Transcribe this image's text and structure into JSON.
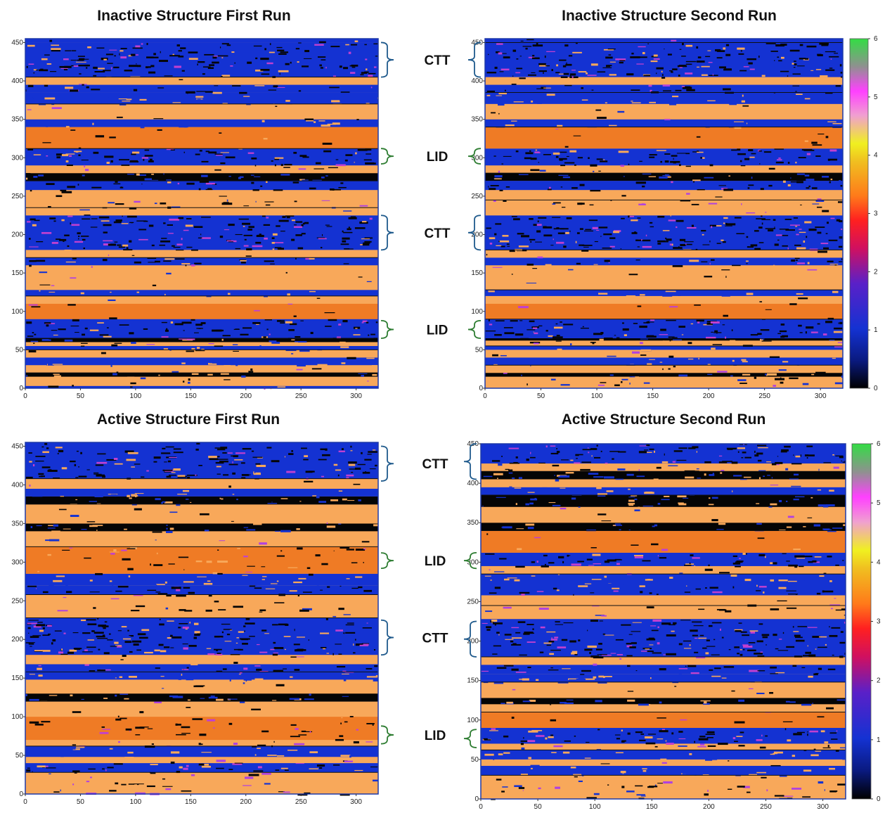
{
  "chart_data": [
    {
      "type": "heatmap",
      "title": "Inactive Structure First Run",
      "xlim": [
        0,
        320
      ],
      "ylim": [
        0,
        455
      ],
      "xticks": [
        0,
        50,
        100,
        150,
        200,
        250,
        300
      ],
      "yticks": [
        0,
        50,
        100,
        150,
        200,
        250,
        300,
        350,
        400,
        450
      ],
      "colorbar": false,
      "annotations": [
        {
          "label": "CTT",
          "y_range": [
            405,
            450
          ]
        },
        {
          "label": "LID",
          "y_range": [
            292,
            312
          ]
        },
        {
          "label": "CTT",
          "y_range": [
            180,
            225
          ]
        },
        {
          "label": "LID",
          "y_range": [
            65,
            88
          ]
        }
      ],
      "bands": [
        [
          0,
          3,
          1,
          0.2
        ],
        [
          3,
          15,
          3.7,
          0.12
        ],
        [
          15,
          20,
          0.3,
          0.4
        ],
        [
          20,
          30,
          3.7,
          0.1
        ],
        [
          30,
          40,
          0.8,
          0.5
        ],
        [
          40,
          50,
          3.7,
          0.1
        ],
        [
          50,
          55,
          0.5,
          0.4
        ],
        [
          55,
          60,
          3.6,
          0.3
        ],
        [
          60,
          65,
          0.4,
          0.4
        ],
        [
          65,
          90,
          1,
          0.5
        ],
        [
          90,
          110,
          3.2,
          0.05
        ],
        [
          110,
          120,
          3.7,
          0.05
        ],
        [
          120,
          128,
          0.9,
          0.4
        ],
        [
          128,
          160,
          3.7,
          0.05
        ],
        [
          160,
          170,
          1,
          0.4
        ],
        [
          170,
          180,
          3.7,
          0.05
        ],
        [
          180,
          225,
          1,
          0.55
        ],
        [
          225,
          235,
          3.7,
          0.05
        ],
        [
          235,
          245,
          3.6,
          0.3
        ],
        [
          245,
          258,
          3.7,
          0.05
        ],
        [
          258,
          270,
          1,
          0.4
        ],
        [
          270,
          280,
          0.3,
          0.4
        ],
        [
          280,
          290,
          3.7,
          0.1
        ],
        [
          290,
          312,
          1,
          0.5
        ],
        [
          312,
          340,
          3.2,
          0.05
        ],
        [
          340,
          350,
          0.6,
          0.4
        ],
        [
          350,
          370,
          3.7,
          0.05
        ],
        [
          370,
          385,
          0.5,
          0.5
        ],
        [
          385,
          395,
          1,
          0.4
        ],
        [
          395,
          405,
          3.7,
          0.05
        ],
        [
          405,
          450,
          1,
          0.55
        ],
        [
          450,
          455,
          1,
          0.1
        ]
      ]
    },
    {
      "type": "heatmap",
      "title": "Inactive Structure Second Run",
      "xlim": [
        0,
        320
      ],
      "ylim": [
        0,
        455
      ],
      "xticks": [
        0,
        50,
        100,
        150,
        200,
        250,
        300
      ],
      "yticks": [
        0,
        50,
        100,
        150,
        200,
        250,
        300,
        350,
        400,
        450
      ],
      "colorbar": true,
      "colorbar_ticks": [
        0,
        1,
        2,
        3,
        4,
        5,
        6
      ],
      "bands": [
        [
          0,
          15,
          3.7,
          0.2
        ],
        [
          15,
          20,
          0.4,
          0.4
        ],
        [
          20,
          30,
          3.7,
          0.1
        ],
        [
          30,
          40,
          0.8,
          0.5
        ],
        [
          40,
          50,
          3.7,
          0.1
        ],
        [
          50,
          55,
          0.5,
          0.4
        ],
        [
          55,
          62,
          3.6,
          0.3
        ],
        [
          62,
          65,
          0.4,
          0.4
        ],
        [
          65,
          90,
          1,
          0.55
        ],
        [
          90,
          110,
          3.2,
          0.05
        ],
        [
          110,
          120,
          3.7,
          0.05
        ],
        [
          120,
          128,
          0.9,
          0.4
        ],
        [
          128,
          160,
          3.7,
          0.05
        ],
        [
          160,
          170,
          1,
          0.4
        ],
        [
          170,
          180,
          3.7,
          0.05
        ],
        [
          180,
          225,
          1,
          0.6
        ],
        [
          225,
          235,
          3.7,
          0.05
        ],
        [
          235,
          245,
          3.6,
          0.3
        ],
        [
          245,
          258,
          3.7,
          0.05
        ],
        [
          258,
          270,
          1,
          0.4
        ],
        [
          270,
          280,
          0.3,
          0.4
        ],
        [
          280,
          290,
          3.7,
          0.1
        ],
        [
          290,
          312,
          1,
          0.55
        ],
        [
          312,
          340,
          3.2,
          0.05
        ],
        [
          340,
          350,
          0.6,
          0.4
        ],
        [
          350,
          370,
          3.7,
          0.05
        ],
        [
          370,
          385,
          0.5,
          0.5
        ],
        [
          385,
          395,
          1,
          0.4
        ],
        [
          395,
          405,
          3.7,
          0.05
        ],
        [
          405,
          450,
          1,
          0.6
        ],
        [
          450,
          455,
          1,
          0.1
        ]
      ]
    },
    {
      "type": "heatmap",
      "title": "Active Structure First Run",
      "xlim": [
        0,
        320
      ],
      "ylim": [
        0,
        455
      ],
      "xticks": [
        0,
        50,
        100,
        150,
        200,
        250,
        300
      ],
      "yticks": [
        0,
        50,
        100,
        150,
        200,
        250,
        300,
        350,
        400,
        450
      ],
      "colorbar": false,
      "annotations": [
        {
          "label": "CTT",
          "y_range": [
            405,
            450
          ]
        },
        {
          "label": "LID",
          "y_range": [
            292,
            312
          ]
        },
        {
          "label": "CTT",
          "y_range": [
            180,
            225
          ]
        },
        {
          "label": "LID",
          "y_range": [
            65,
            88
          ]
        }
      ],
      "bands": [
        [
          0,
          10,
          3.7,
          0.2
        ],
        [
          10,
          15,
          3.6,
          0.3
        ],
        [
          15,
          28,
          3.7,
          0.1
        ],
        [
          28,
          40,
          1,
          0.5
        ],
        [
          40,
          48,
          3.7,
          0.1
        ],
        [
          48,
          62,
          0.5,
          0.5
        ],
        [
          62,
          70,
          3.6,
          0.3
        ],
        [
          70,
          100,
          3.2,
          0.2
        ],
        [
          100,
          120,
          3.7,
          0.05
        ],
        [
          120,
          130,
          0.3,
          0.4
        ],
        [
          130,
          148,
          3.7,
          0.05
        ],
        [
          148,
          158,
          0.5,
          0.5
        ],
        [
          158,
          168,
          1,
          0.4
        ],
        [
          168,
          180,
          3.7,
          0.05
        ],
        [
          180,
          228,
          1,
          0.55
        ],
        [
          228,
          238,
          3.7,
          0.05
        ],
        [
          238,
          245,
          3.6,
          0.3
        ],
        [
          245,
          258,
          3.7,
          0.05
        ],
        [
          258,
          270,
          1,
          0.4
        ],
        [
          270,
          285,
          0.5,
          0.5
        ],
        [
          285,
          320,
          3.2,
          0.2
        ],
        [
          320,
          340,
          3.7,
          0.05
        ],
        [
          340,
          350,
          0.3,
          0.4
        ],
        [
          350,
          375,
          3.7,
          0.05
        ],
        [
          375,
          385,
          0.3,
          0.4
        ],
        [
          385,
          395,
          0.5,
          0.4
        ],
        [
          395,
          408,
          3.7,
          0.05
        ],
        [
          408,
          450,
          1,
          0.55
        ],
        [
          450,
          455,
          1,
          0.1
        ]
      ]
    },
    {
      "type": "heatmap",
      "title": "Active Structure Second Run",
      "xlim": [
        0,
        320
      ],
      "ylim": [
        0,
        450
      ],
      "xticks": [
        0,
        50,
        100,
        150,
        200,
        250,
        300
      ],
      "yticks": [
        0,
        50,
        100,
        150,
        200,
        250,
        300,
        350,
        400,
        450
      ],
      "colorbar": true,
      "colorbar_ticks": [
        0,
        1,
        2,
        3,
        4,
        5,
        6
      ],
      "bands": [
        [
          0,
          10,
          3.7,
          0.2
        ],
        [
          10,
          20,
          3.6,
          0.35
        ],
        [
          20,
          30,
          3.7,
          0.1
        ],
        [
          30,
          42,
          0.5,
          0.5
        ],
        [
          42,
          50,
          3.7,
          0.1
        ],
        [
          50,
          62,
          0.6,
          0.5
        ],
        [
          62,
          70,
          3.6,
          0.3
        ],
        [
          70,
          90,
          1,
          0.5
        ],
        [
          90,
          110,
          3.2,
          0.05
        ],
        [
          110,
          120,
          3.7,
          0.05
        ],
        [
          120,
          128,
          0.3,
          0.4
        ],
        [
          128,
          148,
          3.7,
          0.05
        ],
        [
          148,
          158,
          0.5,
          0.5
        ],
        [
          158,
          170,
          1,
          0.4
        ],
        [
          170,
          180,
          3.7,
          0.05
        ],
        [
          180,
          228,
          1,
          0.55
        ],
        [
          228,
          238,
          3.7,
          0.05
        ],
        [
          238,
          245,
          3.6,
          0.3
        ],
        [
          245,
          258,
          3.7,
          0.05
        ],
        [
          258,
          270,
          1,
          0.4
        ],
        [
          270,
          285,
          0.5,
          0.5
        ],
        [
          285,
          295,
          3.7,
          0.1
        ],
        [
          295,
          312,
          1,
          0.55
        ],
        [
          312,
          340,
          3.2,
          0.05
        ],
        [
          340,
          350,
          0.3,
          0.4
        ],
        [
          350,
          370,
          3.7,
          0.05
        ],
        [
          370,
          385,
          0.3,
          0.4
        ],
        [
          385,
          395,
          0.5,
          0.4
        ],
        [
          395,
          405,
          3.7,
          0.05
        ],
        [
          405,
          415,
          0.4,
          0.5
        ],
        [
          415,
          425,
          3.6,
          0.3
        ],
        [
          425,
          450,
          1,
          0.55
        ]
      ]
    }
  ],
  "colors": {
    "colormap_stops": [
      "#000000",
      "#1432d2",
      "#ff00b0",
      "#ff7a1a",
      "#f0f020",
      "#ff44ff",
      "#33dd44"
    ],
    "brace": "#1f5a8c",
    "brace_lid": "#2e7d32"
  }
}
